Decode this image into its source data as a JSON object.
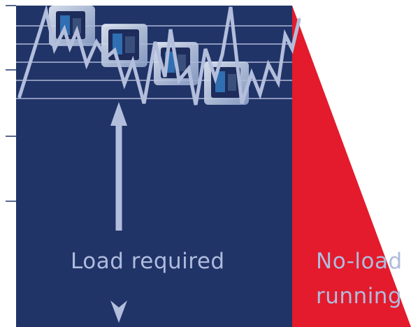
{
  "labels": {
    "load_required": "Load required",
    "no_load_line1": "No-load",
    "no_load_line2": "running"
  },
  "icons": {
    "pump": "hydraulic-pump-unit-icon",
    "arrow_up": "arrow-up-icon",
    "arrow_down": "arrow-down-icon"
  },
  "colors": {
    "load_region": "#213468",
    "no_load_region": "#e31b2c",
    "line": "#b3bedc",
    "grid": "#cdd4ea",
    "label_text": "#b0bcdd"
  }
}
